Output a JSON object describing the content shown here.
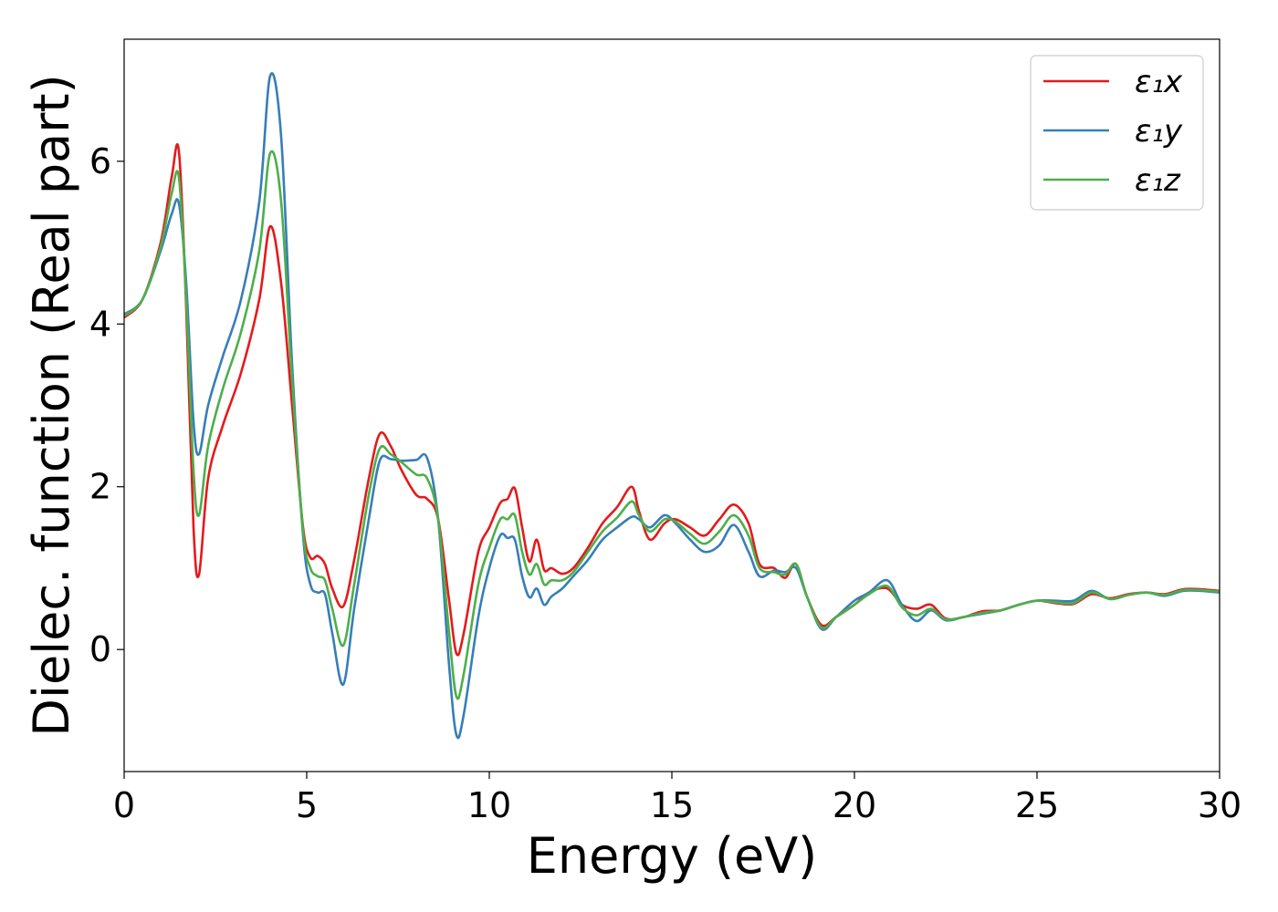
{
  "chart_data": {
    "type": "line",
    "title": "",
    "xlabel": "Energy (eV)",
    "ylabel": "Dielec. function (Real part)",
    "xlim": [
      0,
      30
    ],
    "ylim": [
      -1.5,
      7.5
    ],
    "xticks": [
      0,
      5,
      10,
      15,
      20,
      25,
      30
    ],
    "yticks": [
      0,
      2,
      4,
      6
    ],
    "grid": false,
    "legend": "top-right",
    "series": [
      {
        "name": "ε₁x",
        "color": "#e41a1c",
        "x": [
          0,
          0.5,
          1.0,
          1.3,
          1.5,
          1.7,
          1.9,
          2.05,
          2.3,
          2.7,
          3.2,
          3.7,
          4.0,
          4.3,
          4.6,
          4.9,
          5.1,
          5.3,
          5.5,
          5.7,
          6.0,
          6.3,
          6.7,
          7.0,
          7.3,
          7.6,
          8.0,
          8.3,
          8.6,
          8.9,
          9.1,
          9.3,
          9.7,
          10.0,
          10.3,
          10.5,
          10.7,
          10.9,
          11.1,
          11.3,
          11.5,
          11.7,
          12.0,
          12.3,
          12.7,
          13.1,
          13.5,
          13.9,
          14.1,
          14.4,
          14.8,
          15.1,
          15.5,
          15.9,
          16.3,
          16.7,
          17.1,
          17.4,
          17.8,
          18.1,
          18.4,
          18.7,
          19.1,
          19.5,
          20.0,
          20.4,
          20.9,
          21.3,
          21.7,
          22.1,
          22.5,
          23.0,
          23.5,
          24.0,
          24.5,
          25.0,
          25.5,
          26.0,
          26.5,
          27.0,
          27.5,
          28.0,
          28.5,
          29.0,
          29.5,
          30.0
        ],
        "values": [
          4.08,
          4.3,
          5.0,
          5.8,
          6.12,
          4.2,
          1.5,
          0.92,
          2.1,
          2.75,
          3.4,
          4.3,
          5.2,
          4.5,
          3.0,
          1.5,
          1.13,
          1.15,
          1.05,
          0.75,
          0.53,
          1.1,
          2.1,
          2.65,
          2.5,
          2.2,
          1.9,
          1.85,
          1.6,
          0.6,
          -0.05,
          0.2,
          1.2,
          1.5,
          1.8,
          1.85,
          1.98,
          1.5,
          1.08,
          1.35,
          0.98,
          1.0,
          0.93,
          1.0,
          1.25,
          1.55,
          1.75,
          2.0,
          1.7,
          1.35,
          1.55,
          1.6,
          1.5,
          1.4,
          1.6,
          1.78,
          1.55,
          1.05,
          1.0,
          0.88,
          1.05,
          0.65,
          0.3,
          0.4,
          0.55,
          0.7,
          0.75,
          0.55,
          0.5,
          0.55,
          0.38,
          0.4,
          0.47,
          0.48,
          0.55,
          0.6,
          0.57,
          0.56,
          0.68,
          0.63,
          0.68,
          0.7,
          0.68,
          0.74,
          0.74,
          0.72
        ]
      },
      {
        "name": "ε₁y",
        "color": "#377eb8",
        "x": [
          0,
          0.5,
          1.0,
          1.3,
          1.5,
          1.7,
          1.9,
          2.05,
          2.3,
          2.7,
          3.2,
          3.7,
          4.0,
          4.3,
          4.6,
          4.9,
          5.1,
          5.3,
          5.5,
          5.7,
          6.0,
          6.3,
          6.7,
          7.0,
          7.3,
          7.6,
          8.0,
          8.3,
          8.6,
          8.9,
          9.1,
          9.3,
          9.7,
          10.0,
          10.3,
          10.5,
          10.7,
          10.9,
          11.1,
          11.3,
          11.5,
          11.7,
          12.0,
          12.3,
          12.7,
          13.1,
          13.5,
          13.9,
          14.1,
          14.4,
          14.8,
          15.1,
          15.5,
          15.9,
          16.3,
          16.7,
          17.1,
          17.4,
          17.8,
          18.1,
          18.4,
          18.7,
          19.1,
          19.5,
          20.0,
          20.4,
          20.9,
          21.3,
          21.7,
          22.1,
          22.5,
          23.0,
          23.5,
          24.0,
          24.5,
          25.0,
          25.5,
          26.0,
          26.5,
          27.0,
          27.5,
          28.0,
          28.5,
          29.0,
          29.5,
          30.0
        ],
        "values": [
          4.12,
          4.3,
          4.9,
          5.35,
          5.48,
          4.5,
          2.8,
          2.4,
          3.0,
          3.6,
          4.3,
          5.5,
          7.05,
          6.3,
          3.5,
          1.4,
          0.8,
          0.7,
          0.68,
          0.2,
          -0.43,
          0.5,
          1.6,
          2.32,
          2.34,
          2.32,
          2.33,
          2.35,
          1.6,
          -0.2,
          -1.05,
          -0.8,
          0.4,
          1.0,
          1.4,
          1.37,
          1.35,
          0.9,
          0.64,
          0.75,
          0.55,
          0.65,
          0.75,
          0.9,
          1.1,
          1.35,
          1.5,
          1.63,
          1.6,
          1.5,
          1.65,
          1.55,
          1.35,
          1.2,
          1.28,
          1.53,
          1.2,
          0.9,
          0.97,
          0.95,
          1.0,
          0.65,
          0.25,
          0.4,
          0.6,
          0.7,
          0.85,
          0.55,
          0.35,
          0.48,
          0.36,
          0.4,
          0.44,
          0.48,
          0.55,
          0.6,
          0.6,
          0.6,
          0.72,
          0.62,
          0.67,
          0.7,
          0.66,
          0.72,
          0.72,
          0.7
        ]
      },
      {
        "name": "ε₁z",
        "color": "#4daf4a",
        "x": [
          0,
          0.5,
          1.0,
          1.3,
          1.5,
          1.7,
          1.9,
          2.05,
          2.3,
          2.7,
          3.2,
          3.7,
          4.0,
          4.3,
          4.6,
          4.9,
          5.1,
          5.3,
          5.5,
          5.7,
          6.0,
          6.3,
          6.7,
          7.0,
          7.3,
          7.6,
          8.0,
          8.3,
          8.6,
          8.9,
          9.1,
          9.3,
          9.7,
          10.0,
          10.3,
          10.5,
          10.7,
          10.9,
          11.1,
          11.3,
          11.5,
          11.7,
          12.0,
          12.3,
          12.7,
          13.1,
          13.5,
          13.9,
          14.1,
          14.4,
          14.8,
          15.1,
          15.5,
          15.9,
          16.3,
          16.7,
          17.1,
          17.4,
          17.8,
          18.1,
          18.4,
          18.7,
          19.1,
          19.5,
          20.0,
          20.4,
          20.9,
          21.3,
          21.7,
          22.1,
          22.5,
          23.0,
          23.5,
          24.0,
          24.5,
          25.0,
          25.5,
          26.0,
          26.5,
          27.0,
          27.5,
          28.0,
          28.5,
          29.0,
          29.5,
          30.0
        ],
        "values": [
          4.1,
          4.3,
          4.95,
          5.6,
          5.8,
          4.3,
          2.2,
          1.65,
          2.5,
          3.2,
          3.9,
          4.9,
          6.1,
          5.5,
          3.3,
          1.45,
          1.0,
          0.9,
          0.85,
          0.5,
          0.05,
          0.8,
          1.9,
          2.47,
          2.4,
          2.3,
          2.15,
          2.1,
          1.6,
          0.2,
          -0.58,
          -0.3,
          0.8,
          1.25,
          1.6,
          1.6,
          1.65,
          1.2,
          0.92,
          1.05,
          0.8,
          0.85,
          0.85,
          0.95,
          1.2,
          1.45,
          1.62,
          1.82,
          1.65,
          1.45,
          1.6,
          1.57,
          1.42,
          1.3,
          1.45,
          1.65,
          1.4,
          1.0,
          0.95,
          0.92,
          1.05,
          0.65,
          0.27,
          0.4,
          0.55,
          0.68,
          0.78,
          0.52,
          0.42,
          0.5,
          0.37,
          0.4,
          0.45,
          0.48,
          0.55,
          0.6,
          0.58,
          0.57,
          0.7,
          0.62,
          0.67,
          0.7,
          0.67,
          0.73,
          0.73,
          0.71
        ]
      }
    ]
  }
}
